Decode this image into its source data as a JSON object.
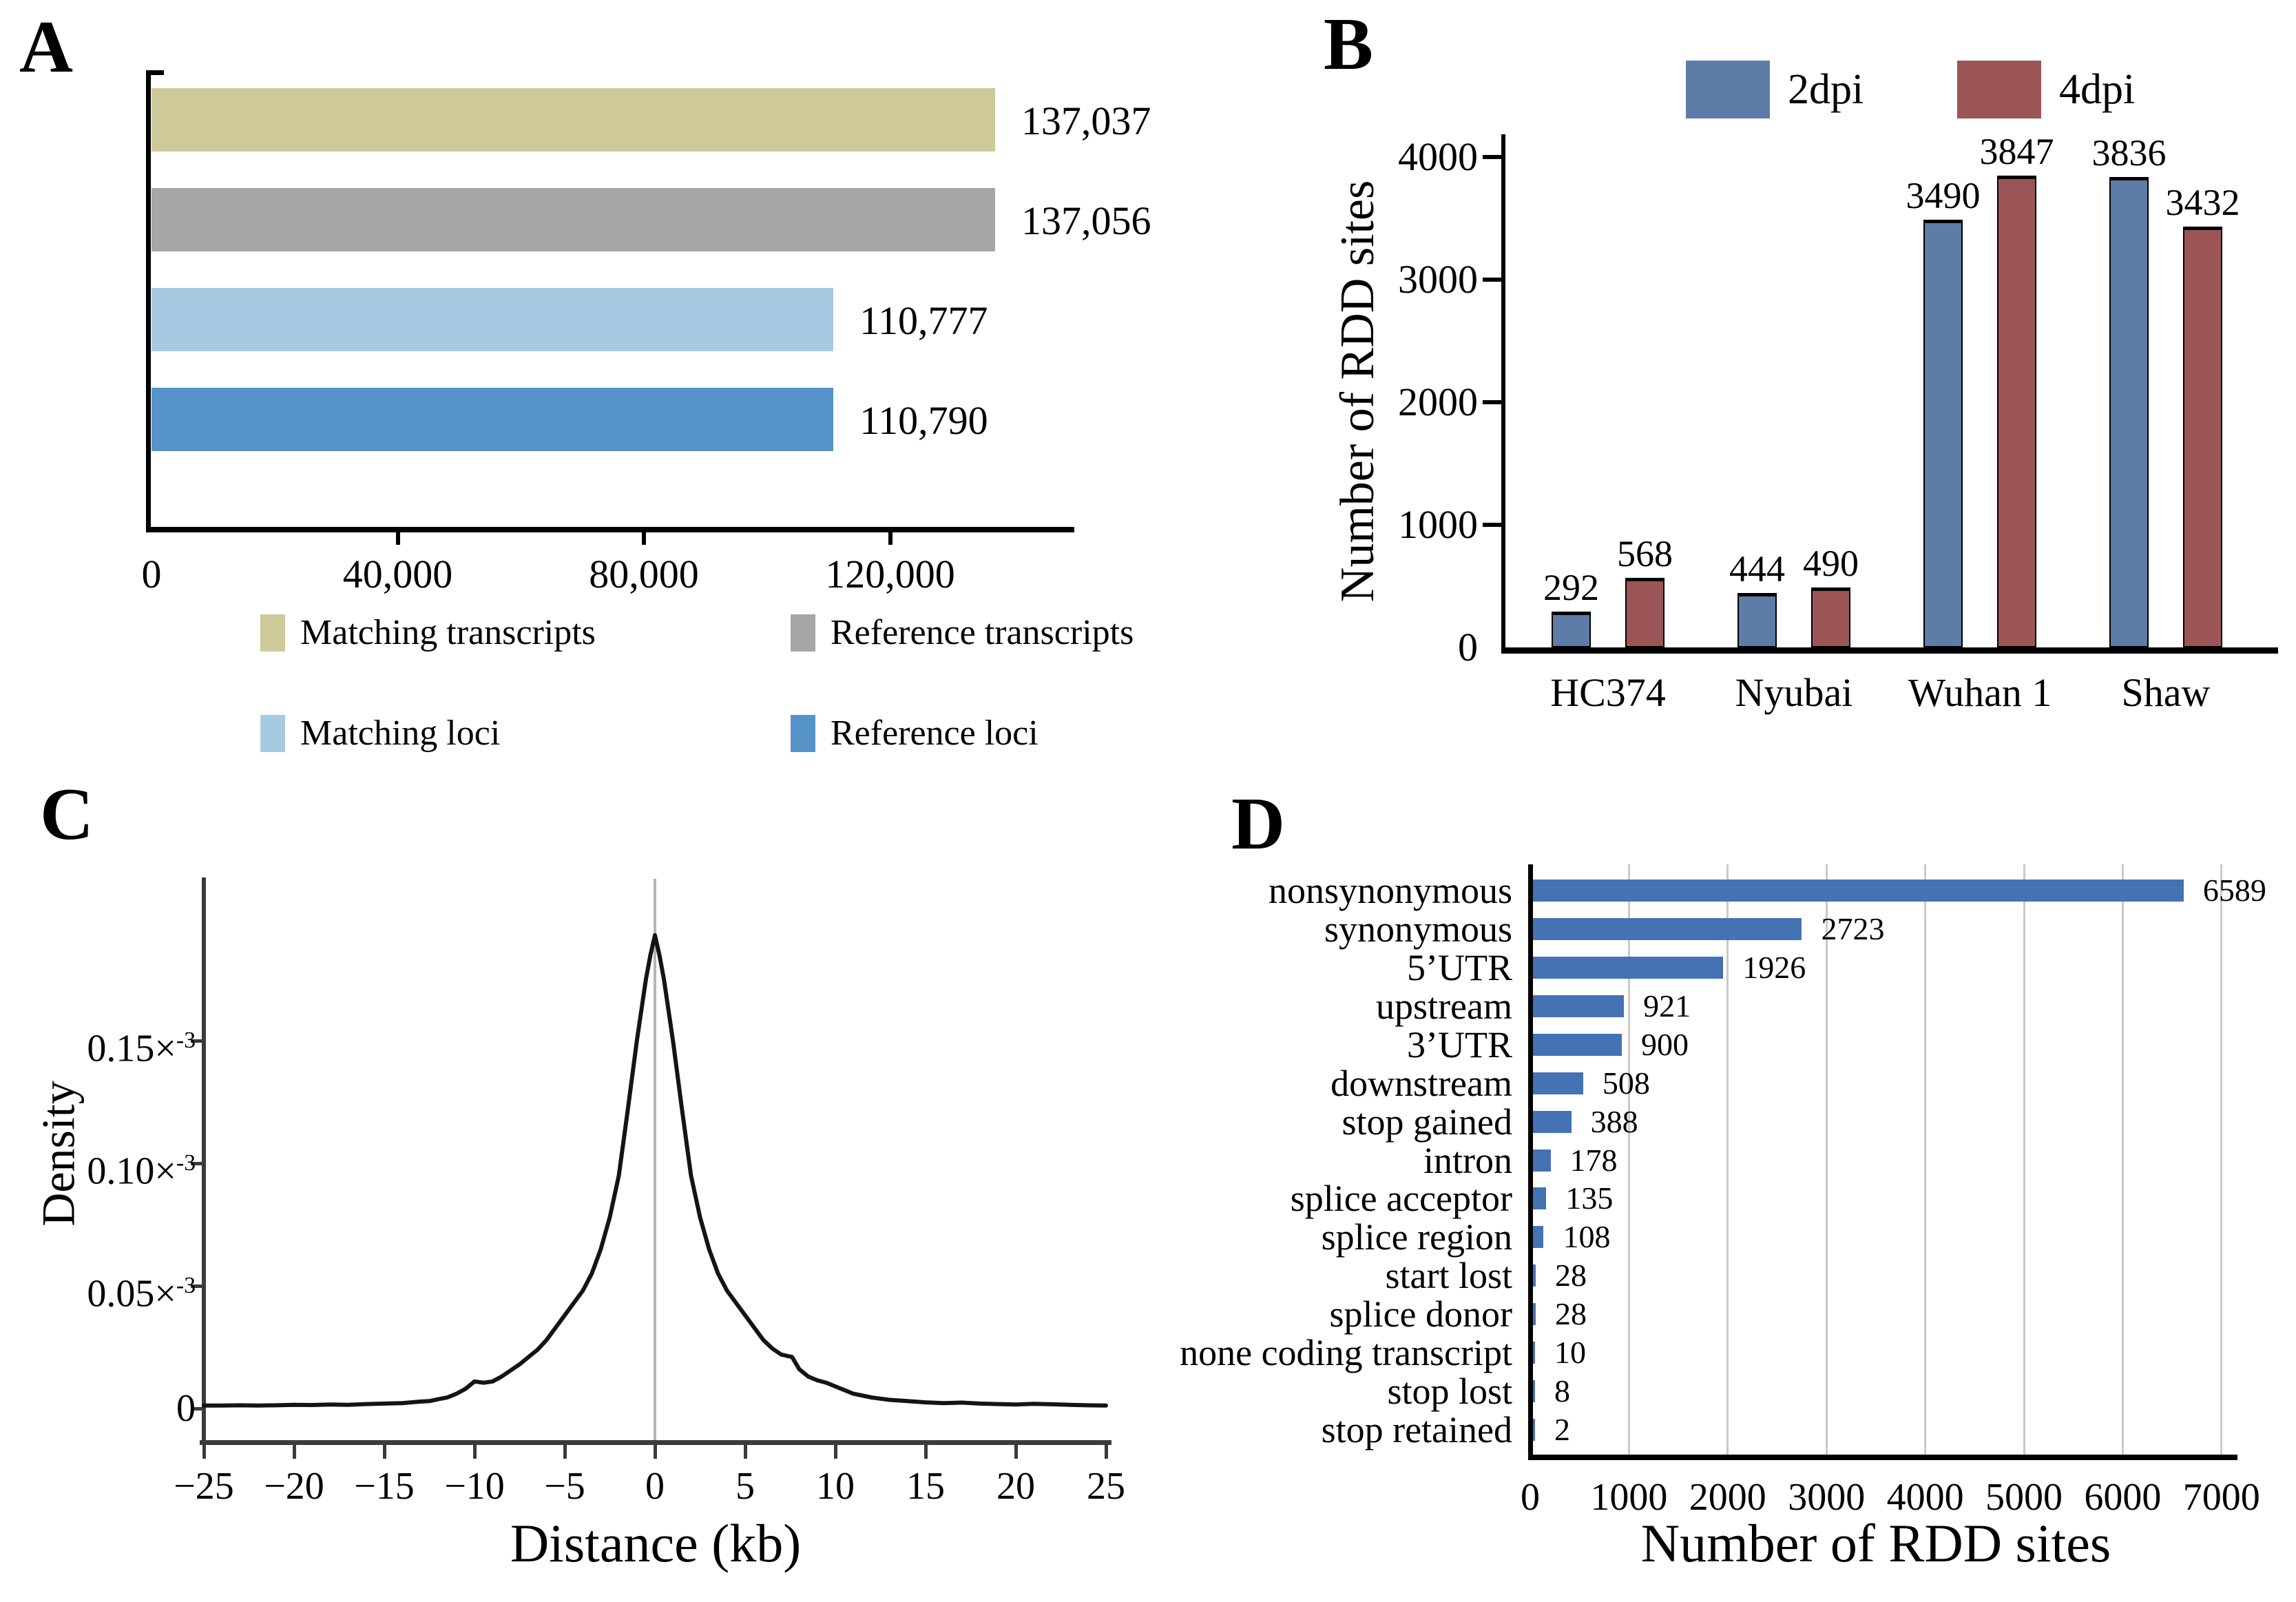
{
  "panel_a": {
    "label": "A",
    "x_tick_labels": [
      "0",
      "40,000",
      "80,000",
      "120,000"
    ],
    "legend": [
      {
        "label": "Matching transcripts",
        "color": "#cec998"
      },
      {
        "label": "Reference transcripts",
        "color": "#a6a6a6"
      },
      {
        "label": "Matching loci",
        "color": "#a7cae3"
      },
      {
        "label": "Reference loci",
        "color": "#5593c8"
      }
    ]
  },
  "panel_b": {
    "label": "B",
    "ylabel": "Number of RDD sites",
    "legend": [
      {
        "label": "2dpi",
        "color": "#5d7ca7"
      },
      {
        "label": "4dpi",
        "color": "#9c5556"
      }
    ],
    "y_tick_labels": [
      "0",
      "1000",
      "2000",
      "3000",
      "4000"
    ]
  },
  "panel_c": {
    "label": "C",
    "xlabel": "Distance (kb)",
    "ylabel": "Density",
    "x_tick_labels": [
      "−25",
      "−20",
      "−15",
      "−10",
      "−5",
      "0",
      "5",
      "10",
      "15",
      "20",
      "25"
    ],
    "y_tick_parts": [
      {
        "main": "0",
        "exp": ""
      },
      {
        "main": "0.05",
        "exp": "-3"
      },
      {
        "main": "0.10",
        "exp": "-3"
      },
      {
        "main": "0.15",
        "exp": "-3"
      }
    ]
  },
  "panel_d": {
    "label": "D",
    "xlabel": "Number of RDD sites",
    "x_tick_labels": [
      "0",
      "1000",
      "2000",
      "3000",
      "4000",
      "5000",
      "6000",
      "7000"
    ]
  },
  "chart_data": [
    {
      "panel": "A",
      "type": "bar",
      "orientation": "horizontal",
      "categories": [
        "Matching transcripts",
        "Reference transcripts",
        "Matching loci",
        "Reference loci"
      ],
      "values": [
        137037,
        137056,
        110777,
        110790
      ],
      "value_labels": [
        "137,037",
        "137,056",
        "110,777",
        "110,790"
      ],
      "colors": [
        "#cec998",
        "#a6a6a6",
        "#a7cae3",
        "#5593c8"
      ],
      "x_ticks": [
        0,
        40000,
        80000,
        120000
      ],
      "xlim": [
        0,
        150000
      ],
      "grid": false,
      "legend_position": "bottom"
    },
    {
      "panel": "B",
      "type": "grouped-bar",
      "categories": [
        "HC374",
        "Nyubai",
        "Wuhan 1",
        "Shaw"
      ],
      "series": [
        {
          "name": "2dpi",
          "color": "#5d7ca7",
          "values": [
            292,
            444,
            3490,
            3836
          ]
        },
        {
          "name": "4dpi",
          "color": "#9c5556",
          "values": [
            568,
            490,
            3847,
            3432
          ]
        }
      ],
      "ylabel": "Number of RDD sites",
      "y_ticks": [
        0,
        1000,
        2000,
        3000,
        4000
      ],
      "ylim": [
        0,
        4200
      ],
      "bar_outline": "#000000",
      "grid": false,
      "legend_position": "top"
    },
    {
      "panel": "C",
      "type": "line",
      "xlabel": "Distance (kb)",
      "ylabel": "Density",
      "x_ticks": [
        -25,
        -20,
        -15,
        -10,
        -5,
        0,
        5,
        10,
        15,
        20,
        25
      ],
      "xlim": [
        -25,
        25
      ],
      "y_ticks_e3": [
        0,
        0.05,
        0.1,
        0.15
      ],
      "ylim_e3": [
        0,
        0.216
      ],
      "zero_line_x": 0,
      "line_color": "#141414",
      "x_kb": [
        -25,
        -24,
        -23,
        -22,
        -21,
        -20,
        -19,
        -18,
        -17,
        -16,
        -15,
        -14,
        -13,
        -12.5,
        -12,
        -11.5,
        -11,
        -10.5,
        -10,
        -9.5,
        -9,
        -8.5,
        -8,
        -7.5,
        -7,
        -6.5,
        -6,
        -5.5,
        -5,
        -4.5,
        -4,
        -3.5,
        -3,
        -2.5,
        -2,
        -1.5,
        -1,
        -0.5,
        -0.25,
        0,
        0.25,
        0.5,
        1,
        1.5,
        2,
        2.5,
        3,
        3.5,
        4,
        4.5,
        5,
        5.5,
        6,
        6.5,
        7,
        7.3,
        7.6,
        8,
        8.5,
        9,
        9.5,
        10,
        10.5,
        11,
        12,
        13,
        14,
        15,
        16,
        17,
        18,
        19,
        20,
        21,
        22,
        23,
        24,
        25
      ],
      "density_e3": [
        0.0012,
        0.0012,
        0.0013,
        0.0012,
        0.0013,
        0.0015,
        0.0014,
        0.0016,
        0.0015,
        0.0018,
        0.002,
        0.0022,
        0.0028,
        0.003,
        0.0038,
        0.0045,
        0.006,
        0.008,
        0.011,
        0.0105,
        0.011,
        0.013,
        0.0155,
        0.018,
        0.021,
        0.024,
        0.028,
        0.033,
        0.038,
        0.043,
        0.048,
        0.055,
        0.065,
        0.078,
        0.095,
        0.122,
        0.15,
        0.175,
        0.185,
        0.193,
        0.185,
        0.175,
        0.15,
        0.122,
        0.095,
        0.078,
        0.065,
        0.055,
        0.048,
        0.043,
        0.038,
        0.033,
        0.028,
        0.0245,
        0.022,
        0.0215,
        0.021,
        0.016,
        0.013,
        0.0115,
        0.0105,
        0.009,
        0.0075,
        0.006,
        0.0045,
        0.0035,
        0.003,
        0.0025,
        0.0022,
        0.0024,
        0.002,
        0.0018,
        0.0016,
        0.0019,
        0.0017,
        0.0015,
        0.0013,
        0.0012
      ]
    },
    {
      "panel": "D",
      "type": "bar",
      "orientation": "horizontal",
      "categories": [
        "nonsynonymous",
        "synonymous",
        "5’UTR",
        "upstream",
        "3’UTR",
        "downstream",
        "stop gained",
        "intron",
        "splice acceptor",
        "splice region",
        "start lost",
        "splice donor",
        "none coding transcript",
        "stop lost",
        "stop retained"
      ],
      "values": [
        6589,
        2723,
        1926,
        921,
        900,
        508,
        388,
        178,
        135,
        108,
        28,
        28,
        10,
        8,
        2
      ],
      "bar_color": "#4472b4",
      "xlabel": "Number of RDD sites",
      "x_ticks": [
        0,
        1000,
        2000,
        3000,
        4000,
        5000,
        6000,
        7000
      ],
      "xlim": [
        0,
        7100
      ],
      "grid": true,
      "grid_color": "#c9c9c9"
    }
  ]
}
